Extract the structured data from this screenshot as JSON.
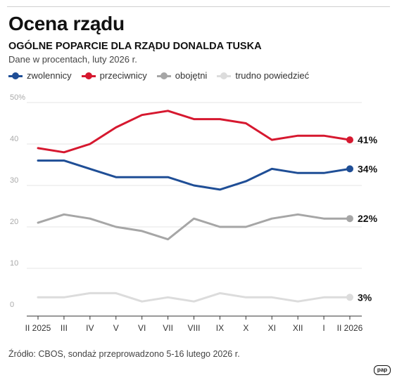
{
  "header": {
    "title": "Ocena rządu",
    "subtitle": "OGÓLNE POPARCIE DLA RZĄDU DONALDA TUSKA",
    "units": "Dane w procentach, luty 2026 r."
  },
  "footer": {
    "source": "Źródło: CBOS, sondaż przeprowadzono 5-16 lutego 2026 r.",
    "logo": "pap"
  },
  "chart_data": {
    "type": "line",
    "categories": [
      "II 2025",
      "III",
      "IV",
      "V",
      "VI",
      "VII",
      "VIII",
      "IX",
      "X",
      "XI",
      "XII",
      "I",
      "II 2026"
    ],
    "y_ticks": [
      {
        "value": 50,
        "label": "50%"
      },
      {
        "value": 40,
        "label": "40"
      },
      {
        "value": 30,
        "label": "30"
      },
      {
        "value": 20,
        "label": "20"
      },
      {
        "value": 10,
        "label": "10"
      },
      {
        "value": 0,
        "label": "0"
      }
    ],
    "ylim": [
      0,
      50
    ],
    "grid": true,
    "legend_position": "top-left",
    "series": [
      {
        "key": "zwolennicy",
        "name": "zwolennicy",
        "color": "#1f4e96",
        "end_label": "34%",
        "values": [
          36,
          36,
          34,
          32,
          32,
          32,
          30,
          29,
          31,
          34,
          33,
          33,
          34
        ]
      },
      {
        "key": "przeciwnicy",
        "name": "przeciwnicy",
        "color": "#d6182f",
        "end_label": "41%",
        "values": [
          39,
          38,
          40,
          44,
          47,
          48,
          46,
          46,
          45,
          41,
          42,
          42,
          41
        ]
      },
      {
        "key": "obojetni",
        "name": "obojętni",
        "color": "#a6a6a6",
        "end_label": "22%",
        "values": [
          21,
          23,
          22,
          20,
          19,
          17,
          22,
          20,
          20,
          22,
          23,
          22,
          22
        ]
      },
      {
        "key": "trudno",
        "name": "trudno powiedzieć",
        "color": "#dcdcdc",
        "end_label": "3%",
        "values": [
          3,
          3,
          4,
          4,
          2,
          3,
          2,
          4,
          3,
          3,
          2,
          3,
          3
        ]
      }
    ]
  }
}
